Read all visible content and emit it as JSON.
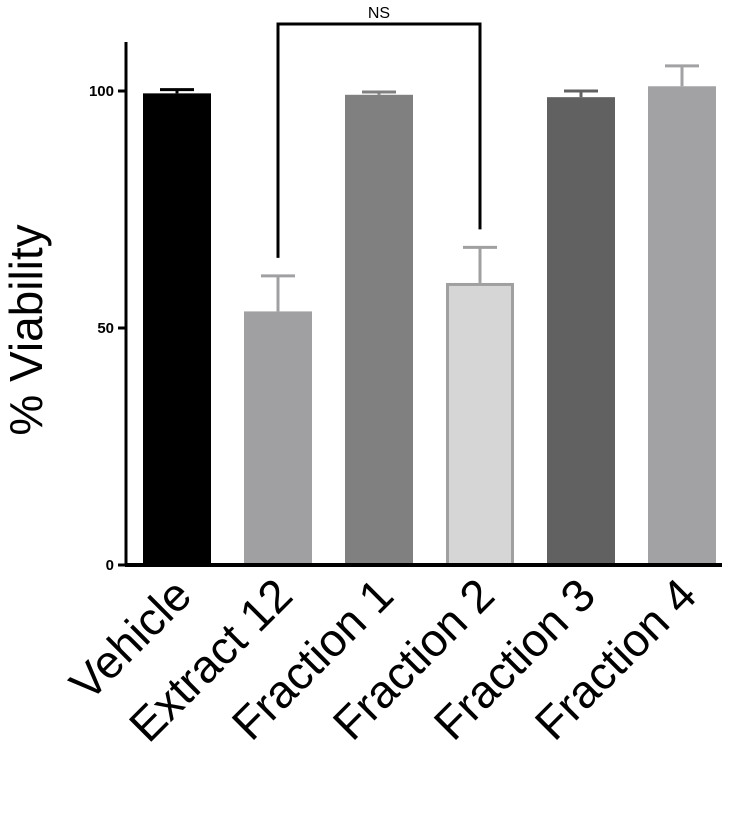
{
  "chart_data": {
    "type": "bar",
    "title": "",
    "xlabel": "",
    "ylabel": "% Viability",
    "ylim": [
      0,
      110
    ],
    "yticks": [
      0,
      50,
      100
    ],
    "ytick_labels": [
      "0",
      "50",
      "100"
    ],
    "categories": [
      "Vehicle",
      "Extract 12",
      "Fraction 1",
      "Fraction 2",
      "Fraction 3",
      "Fraction 4"
    ],
    "values": [
      99.5,
      53.5,
      99.2,
      59.5,
      98.7,
      101
    ],
    "errors": [
      0.8,
      7.5,
      0.6,
      7.5,
      1.3,
      4.3
    ],
    "colors": [
      "#000000",
      "#a0a0a2",
      "#808080",
      "#d6d6d6",
      "#616161",
      "#a2a2a4"
    ],
    "edge_colors": [
      "#000000",
      "#a0a0a2",
      "#808080",
      "#a0a0a0",
      "#616161",
      "#a2a2a4"
    ],
    "error_colors": [
      "#000000",
      "#a0a0a2",
      "#808080",
      "#a0a0a0",
      "#616161",
      "#a2a2a4"
    ],
    "grid": false,
    "annotations": [
      {
        "type": "bracket",
        "from": "Extract 12",
        "to": "Fraction 2",
        "label": "NS"
      }
    ]
  }
}
